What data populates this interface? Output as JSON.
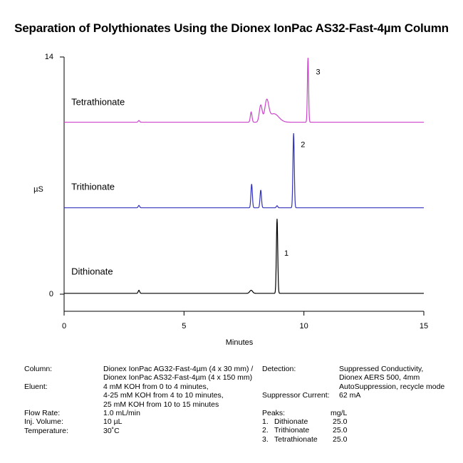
{
  "title": "Separation of Polythionates Using the Dionex IonPac AS32-Fast-4µm Column",
  "chart_data": {
    "type": "line",
    "title": "Separation of Polythionates Using the Dionex IonPac AS32-Fast-4µm Column",
    "xlabel": "Minutes",
    "ylabel": "µS",
    "xlim": [
      0,
      15
    ],
    "ylim": [
      0,
      14
    ],
    "xticks": [
      "0",
      "5",
      "10",
      "15"
    ],
    "yticks": [
      "0",
      "14"
    ],
    "grid": false,
    "series": [
      {
        "name": "Dithionate",
        "color": "#000000",
        "baseline": 0.05,
        "peaks": [
          {
            "x": 3.12,
            "h": 0.18,
            "w": 0.03
          },
          {
            "x": 7.8,
            "h": 0.18,
            "w": 0.06
          },
          {
            "x": 8.88,
            "h": 4.4,
            "w": 0.028
          }
        ],
        "peak_label": {
          "text": "1",
          "x": 9.18,
          "y": 2.4
        }
      },
      {
        "name": "Trithionate",
        "color": "#3333bb",
        "baseline": 5.1,
        "peaks": [
          {
            "x": 3.12,
            "h": 0.14,
            "w": 0.03
          },
          {
            "x": 7.82,
            "h": 1.4,
            "w": 0.03
          },
          {
            "x": 8.2,
            "h": 1.05,
            "w": 0.03
          },
          {
            "x": 8.88,
            "h": 0.12,
            "w": 0.03
          },
          {
            "x": 9.57,
            "h": 4.4,
            "w": 0.028
          }
        ],
        "peak_label": {
          "text": "2",
          "x": 9.87,
          "y": 8.8
        }
      },
      {
        "name": "Tetrathionate",
        "color": "#cc44cc",
        "baseline": 10.15,
        "peaks": [
          {
            "x": 3.12,
            "h": 0.1,
            "w": 0.03
          },
          {
            "x": 7.8,
            "h": 0.6,
            "w": 0.035
          },
          {
            "x": 8.2,
            "h": 1.0,
            "w": 0.06
          },
          {
            "x": 8.45,
            "h": 1.2,
            "w": 0.08
          },
          {
            "x": 8.75,
            "h": 0.5,
            "w": 0.2
          },
          {
            "x": 10.17,
            "h": 3.8,
            "w": 0.025
          }
        ],
        "peak_label": {
          "text": "3",
          "x": 10.5,
          "y": 13.1
        }
      }
    ],
    "annotations": [
      {
        "text": "Dithionate",
        "x": 0.3,
        "y": 1.3
      },
      {
        "text": "Trithionate",
        "x": 0.3,
        "y": 6.3
      },
      {
        "text": "Tetrathionate",
        "x": 0.3,
        "y": 11.3
      }
    ]
  },
  "conditions": {
    "left": [
      {
        "label": "Column:",
        "value": [
          "Dionex IonPac AG32-Fast-4µm (4 x 30 mm) /",
          "Dionex IonPac AS32-Fast-4µm (4 x 150 mm)"
        ]
      },
      {
        "label": "Eluent:",
        "value": [
          "4 mM KOH from 0 to 4 minutes,",
          "4-25 mM KOH from 4 to 10 minutes,",
          "25 mM KOH from 10 to 15 minutes"
        ]
      },
      {
        "label": "Flow Rate:",
        "value": [
          "1.0 mL/min"
        ]
      },
      {
        "label": "Inj. Volume:",
        "value": [
          "10 µL"
        ]
      },
      {
        "label": "Temperature:",
        "value": [
          "30˚C"
        ]
      }
    ],
    "detection_label": "Detection:",
    "detection_value": [
      "Suppressed Conductivity,",
      "Dionex AERS 500, 4mm",
      "AutoSuppression, recycle mode"
    ],
    "suppressor_label": "Suppressor Current:",
    "suppressor_value": "62 mA",
    "peaks_header": "Peaks:",
    "peaks_unit": "mg/L",
    "peaks": [
      {
        "num": "1.",
        "name": "Dithionate",
        "value": "25.0"
      },
      {
        "num": "2.",
        "name": "Trithionate",
        "value": "25.0"
      },
      {
        "num": "3.",
        "name": "Tetrathionate",
        "value": "25.0"
      }
    ]
  }
}
